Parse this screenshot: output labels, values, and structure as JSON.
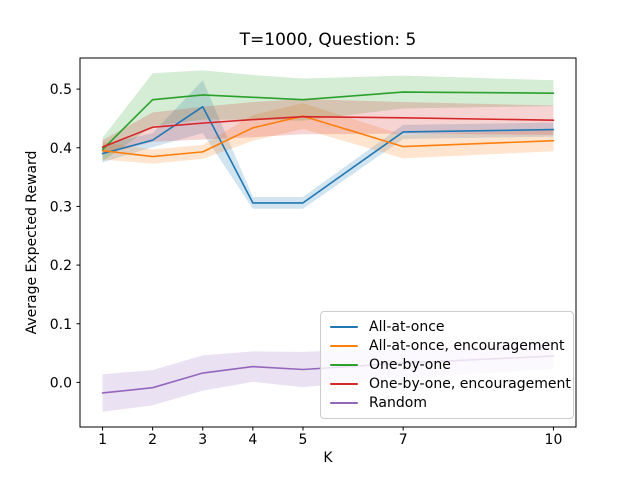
{
  "chart_data": {
    "type": "line",
    "title": "T=1000, Question: 5",
    "xlabel": "K",
    "ylabel": "Average Expected Reward",
    "x": [
      1,
      2,
      3,
      4,
      5,
      7,
      10
    ],
    "x_ticks": [
      1,
      2,
      3,
      4,
      5,
      7,
      10
    ],
    "y_ticks": [
      0.0,
      0.1,
      0.2,
      0.3,
      0.4,
      0.5
    ],
    "xlim": [
      0.55,
      10.45
    ],
    "ylim": [
      -0.076,
      0.553
    ],
    "grid": false,
    "legend_position": "lower right inside axes",
    "band_alpha": 0.2,
    "series": [
      {
        "id": "all-at-once",
        "name": "All-at-once",
        "color": "#1f77b4",
        "values": [
          0.39,
          0.413,
          0.47,
          0.306,
          0.306,
          0.427,
          0.431
        ],
        "band_halfwidth": [
          0.015,
          0.012,
          0.045,
          0.01,
          0.01,
          0.012,
          0.012
        ]
      },
      {
        "id": "all-at-once-encouragement",
        "name": "All-at-once, encouragement",
        "color": "#ff7f0e",
        "values": [
          0.395,
          0.385,
          0.393,
          0.434,
          0.454,
          0.402,
          0.412
        ],
        "band_halfwidth": [
          0.015,
          0.012,
          0.012,
          0.022,
          0.022,
          0.02,
          0.018
        ]
      },
      {
        "id": "one-by-one",
        "name": "One-by-one",
        "color": "#2ca02c",
        "values": [
          0.397,
          0.482,
          0.49,
          0.486,
          0.482,
          0.495,
          0.493
        ],
        "band_halfwidth": [
          0.02,
          0.045,
          0.042,
          0.038,
          0.036,
          0.028,
          0.022
        ]
      },
      {
        "id": "one-by-one-encouragement",
        "name": "One-by-one, encouragement",
        "color": "#d62728",
        "values": [
          0.401,
          0.435,
          0.442,
          0.448,
          0.453,
          0.451,
          0.447
        ],
        "band_halfwidth": [
          0.012,
          0.025,
          0.028,
          0.03,
          0.03,
          0.027,
          0.025
        ]
      },
      {
        "id": "random",
        "name": "Random",
        "color": "#9467bd",
        "values": [
          -0.018,
          -0.009,
          0.016,
          0.027,
          0.022,
          0.033,
          0.045
        ],
        "band_halfwidth": [
          0.032,
          0.03,
          0.03,
          0.026,
          0.03,
          0.026,
          0.022
        ]
      }
    ]
  }
}
